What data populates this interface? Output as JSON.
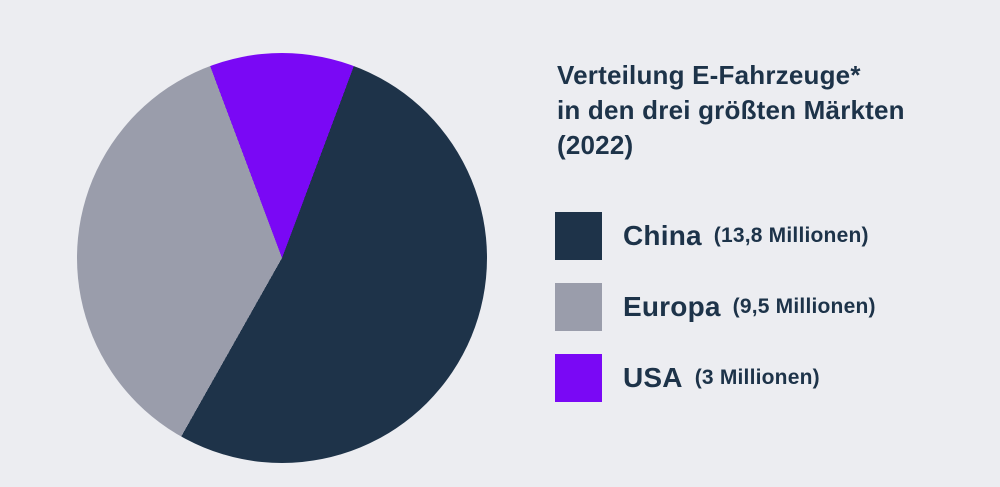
{
  "background_color": "#ecedf1",
  "text_color": "#1d3349",
  "title": {
    "text": "Verteilung E-Fahrzeuge*\nin den drei größten Märkten\n(2022)"
  },
  "chart_data": {
    "type": "pie",
    "title": "Verteilung E-Fahrzeuge* in den drei größten Märkten (2022)",
    "unit": "Millionen",
    "start_angle_deg": -20.53,
    "clockwise_order": [
      "USA",
      "China",
      "Europa"
    ],
    "slices": [
      {
        "label": "China",
        "value": 13.8,
        "value_label": "(13,8 Millionen)",
        "color": "#1e3349"
      },
      {
        "label": "Europa",
        "value": 9.5,
        "value_label": "(9,5 Millionen)",
        "color": "#9a9dab"
      },
      {
        "label": "USA",
        "value": 3,
        "value_label": "(3 Millionen)",
        "color": "#7a08f5"
      }
    ],
    "legend_position": "right"
  },
  "legend": {
    "items": [
      {
        "name": "China",
        "value_label": "(13,8 Millionen)",
        "color": "#1e3349"
      },
      {
        "name": "Europa",
        "value_label": "(9,5 Millionen)",
        "color": "#9a9dab"
      },
      {
        "name": "USA",
        "value_label": "(3 Millionen)",
        "color": "#7a08f5"
      }
    ]
  }
}
